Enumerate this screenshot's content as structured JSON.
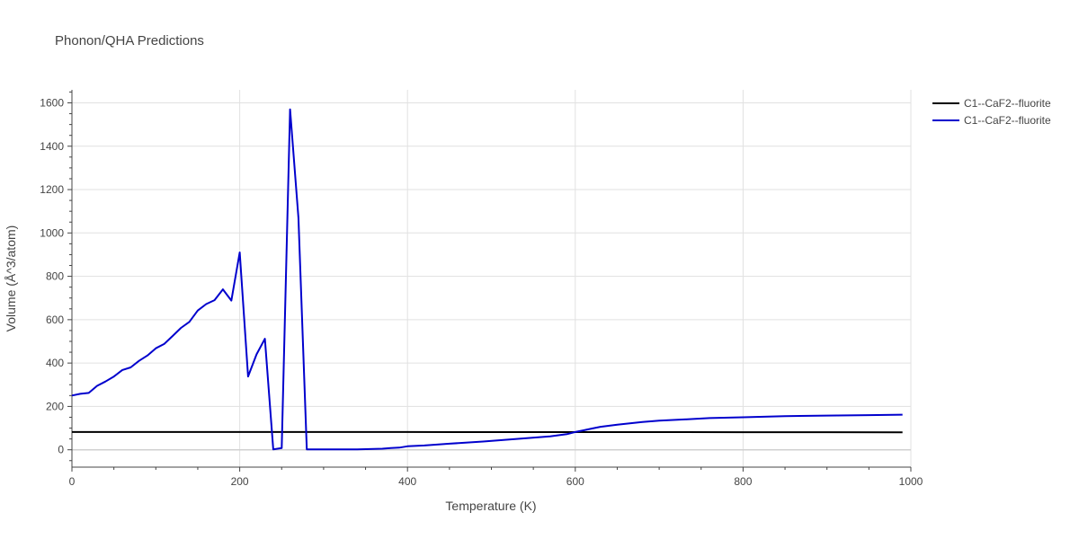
{
  "chart_data": {
    "type": "line",
    "title": "Phonon/QHA Predictions",
    "xlabel": "Temperature (K)",
    "ylabel": "Volume (Å^3/atom)",
    "xlim": [
      0,
      1000
    ],
    "ylim": [
      -80,
      1660
    ],
    "x_ticks": [
      0,
      200,
      400,
      600,
      800,
      1000
    ],
    "y_ticks": [
      0,
      200,
      400,
      600,
      800,
      1000,
      1200,
      1400,
      1600
    ],
    "grid": true,
    "legend_position": "top-right",
    "series": [
      {
        "name": "C1--CaF2--fluorite",
        "color": "#000000",
        "x": [
          0,
          100,
          200,
          300,
          400,
          500,
          600,
          700,
          800,
          900,
          990
        ],
        "y": [
          82,
          82,
          82,
          82,
          81.8,
          81.6,
          81.5,
          81.4,
          81.2,
          81,
          80.8
        ]
      },
      {
        "name": "C1--CaF2--fluorite",
        "color": "#0000cd",
        "x": [
          0,
          10,
          20,
          30,
          40,
          50,
          60,
          70,
          80,
          90,
          100,
          110,
          120,
          130,
          140,
          150,
          160,
          170,
          180,
          190,
          200,
          210,
          220,
          230,
          240,
          250,
          260,
          270,
          280,
          300,
          340,
          370,
          380,
          390,
          400,
          420,
          450,
          490,
          530,
          570,
          590,
          600,
          610,
          620,
          630,
          650,
          680,
          700,
          730,
          760,
          800,
          850,
          900,
          950,
          990
        ],
        "y": [
          250,
          258,
          262,
          295,
          315,
          338,
          368,
          380,
          410,
          435,
          468,
          488,
          525,
          562,
          590,
          642,
          672,
          690,
          740,
          688,
          910,
          338,
          440,
          512,
          2,
          8,
          1570,
          1070,
          2,
          2,
          2,
          5,
          8,
          10,
          16,
          20,
          28,
          38,
          50,
          62,
          72,
          82,
          90,
          98,
          106,
          116,
          128,
          134,
          140,
          146,
          150,
          155,
          158,
          160,
          162
        ]
      }
    ]
  }
}
